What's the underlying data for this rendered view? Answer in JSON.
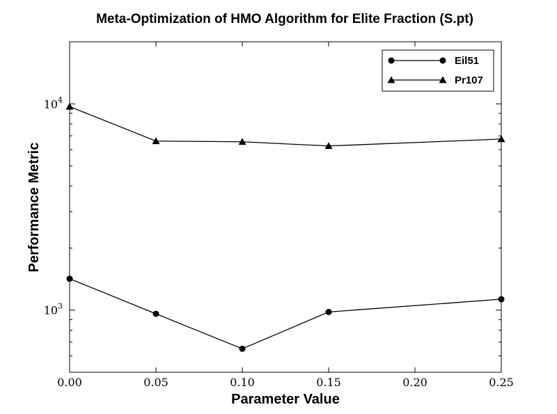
{
  "chart_data": {
    "type": "line",
    "title": "Meta-Optimization of HMO Algorithm for Elite Fraction (S.pt)",
    "xlabel": "Parameter Value",
    "ylabel": "Performance Metric",
    "x": [
      0.0,
      0.05,
      0.1,
      0.15,
      0.2,
      0.25
    ],
    "xlim": [
      0.0,
      0.25
    ],
    "ylim": [
      500,
      20000
    ],
    "yscale": "log",
    "xticks": [
      "0.00",
      "0.05",
      "0.10",
      "0.15",
      "0.20",
      "0.25"
    ],
    "yticks": [
      {
        "value": 1000,
        "base": "10",
        "exp": "3"
      },
      {
        "value": 10000,
        "base": "10",
        "exp": "4"
      }
    ],
    "series": [
      {
        "name": "Eil51",
        "marker": "circle",
        "x": [
          0.0,
          0.05,
          0.1,
          0.15,
          0.25
        ],
        "values": [
          1420,
          960,
          650,
          980,
          1130
        ]
      },
      {
        "name": "Pr107",
        "marker": "triangle",
        "x": [
          0.0,
          0.05,
          0.1,
          0.15,
          0.25
        ],
        "values": [
          9700,
          6600,
          6550,
          6250,
          6750
        ]
      }
    ],
    "legend_position": "top-right",
    "grid": false,
    "line_color": "#000000"
  }
}
